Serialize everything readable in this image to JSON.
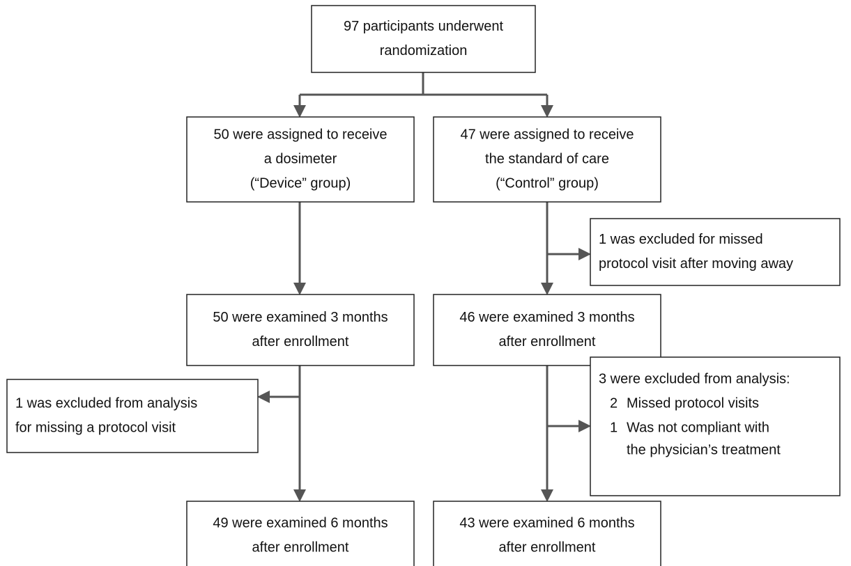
{
  "nodes": [
    {
      "lines": [
        "97 participants underwent",
        "randomization"
      ]
    },
    {
      "lines": [
        "50 were assigned to receive",
        "a dosimeter",
        "(“Device” group)"
      ]
    },
    {
      "lines": [
        "47 were assigned to receive",
        "the standard of care",
        "(“Control” group)"
      ]
    },
    {
      "lines": [
        "1 was excluded for missed",
        "protocol visit after moving away"
      ]
    },
    {
      "lines": [
        "50 were examined 3 months",
        "after enrollment"
      ]
    },
    {
      "lines": [
        "46 were examined 3 months",
        "after enrollment"
      ]
    },
    {
      "lines": [
        "1 was excluded from analysis",
        "for missing a protocol visit"
      ]
    },
    {
      "heading": "3 were excluded from analysis:",
      "items": [
        {
          "number": "2",
          "lines": [
            "Missed protocol visits"
          ]
        },
        {
          "number": "1",
          "lines": [
            "Was not compliant with",
            "the physician’s treatment"
          ]
        }
      ]
    },
    {
      "lines": [
        "49 were examined 6 months",
        "after enrollment"
      ]
    },
    {
      "lines": [
        "43 were examined 6 months",
        "after enrollment"
      ]
    }
  ]
}
